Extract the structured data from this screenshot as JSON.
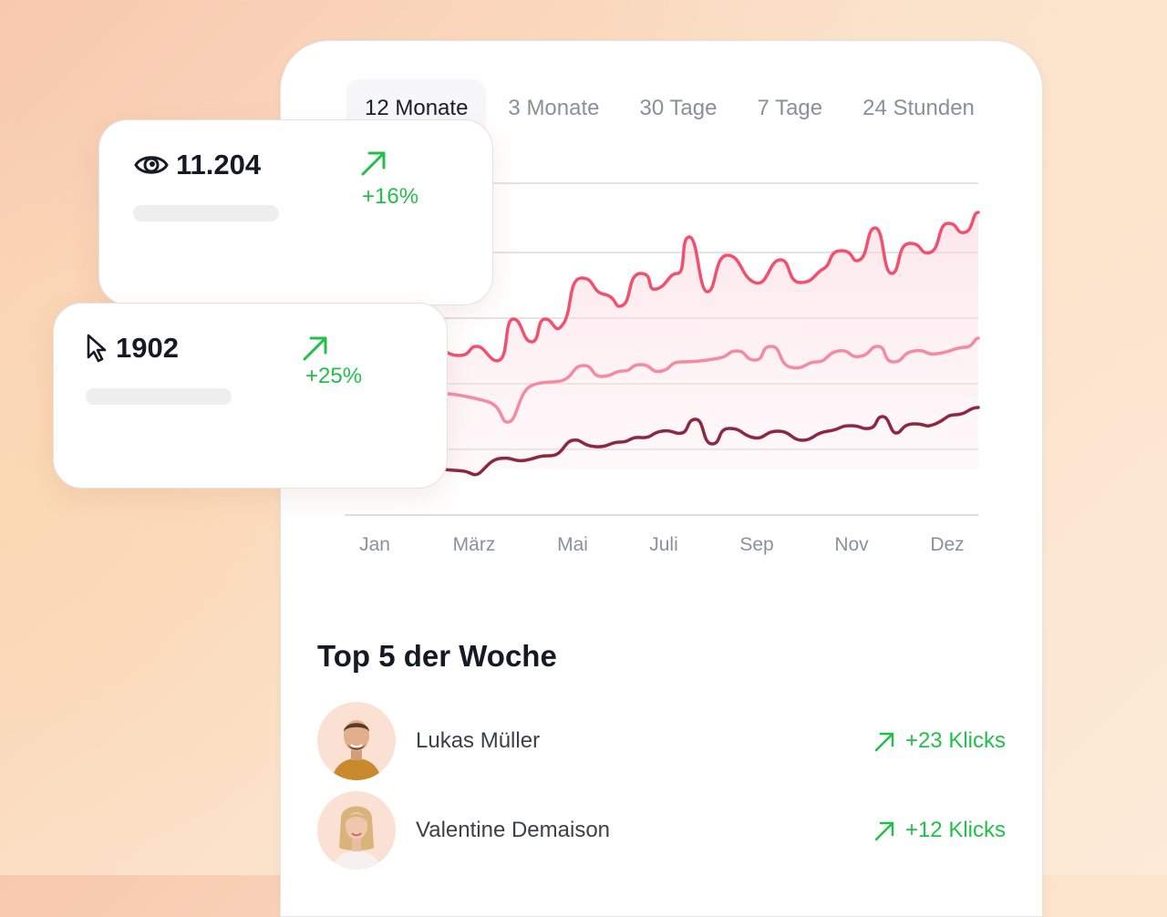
{
  "tabs": [
    {
      "label": "12 Monate",
      "active": true
    },
    {
      "label": "3 Monate",
      "active": false
    },
    {
      "label": "30 Tage",
      "active": false
    },
    {
      "label": "7 Tage",
      "active": false
    },
    {
      "label": "24 Stunden",
      "active": false
    }
  ],
  "chart_data": {
    "type": "line",
    "x_ticks": [
      "Jan",
      "März",
      "Mai",
      "Juli",
      "Sep",
      "Nov",
      "Dez"
    ],
    "grid": true,
    "colors": [
      "#f1506e",
      "#f58aa0",
      "#8e2740"
    ]
  },
  "stats": [
    {
      "value": "11.204",
      "icon": "eye-icon",
      "delta": "+16%"
    },
    {
      "value": "1902",
      "icon": "cursor-icon",
      "delta": "+25%"
    }
  ],
  "top": {
    "title": "Top 5 der Woche",
    "rows": [
      {
        "name": "Lukas Müller",
        "delta": "+23 Klicks"
      },
      {
        "name": "Valentine Demaison",
        "delta": "+12 Klicks"
      }
    ]
  },
  "accent": {
    "positive": "#22c04a"
  }
}
